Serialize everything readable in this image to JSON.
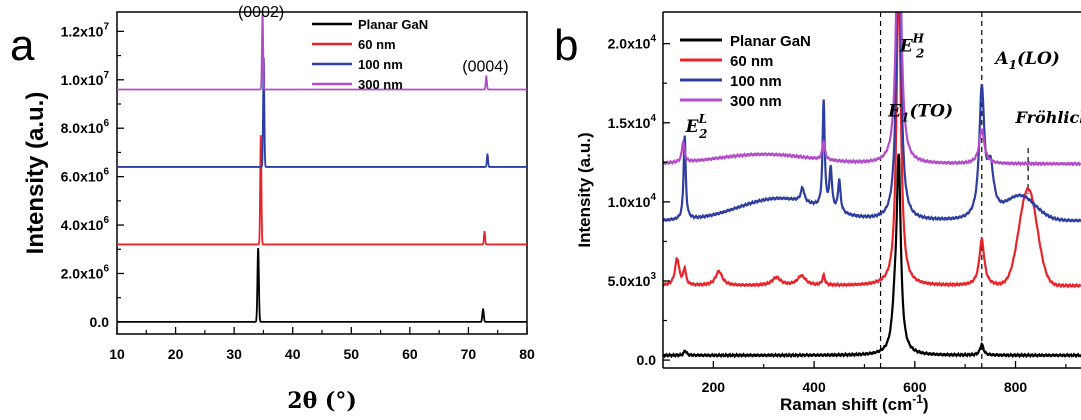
{
  "chart_data": [
    {
      "type": "line",
      "panel_label": "a",
      "xlabel": "2θ (°)",
      "ylabel": "Intensity (a.u.)",
      "xlim": [
        10,
        80
      ],
      "ylim": [
        -0.5,
        12.8
      ],
      "x_ticks": [
        10,
        20,
        30,
        40,
        50,
        60,
        70,
        80
      ],
      "y_tick_values": [
        0,
        2,
        4,
        6,
        8,
        10,
        12
      ],
      "y_tick_labels": [
        {
          "base": "0.0",
          "exp": ""
        },
        {
          "base": "2.0x10",
          "exp": "6"
        },
        {
          "base": "4.0x10",
          "exp": "6"
        },
        {
          "base": "6.0x10",
          "exp": "6"
        },
        {
          "base": "8.0x10",
          "exp": "6"
        },
        {
          "base": "1.0x10",
          "exp": "7"
        },
        {
          "base": "1.2x10",
          "exp": "7"
        }
      ],
      "y_unit_note": "millions",
      "legend_placement": "top-right",
      "annotations": [
        {
          "text": "(0002)",
          "x": 34.6,
          "y": 12.6
        },
        {
          "text": "(0004)",
          "x": 72.9,
          "y": 10.35
        }
      ],
      "series": [
        {
          "name": "Planar GaN",
          "color": "#000000",
          "offset": 0.0,
          "peaks": [
            {
              "x": 34.1,
              "height": 3.05,
              "width": 0.12
            },
            {
              "x": 72.5,
              "height": 0.52,
              "width": 0.12
            }
          ]
        },
        {
          "name": "60 nm",
          "color": "#e8232a",
          "offset": 3.2,
          "peaks": [
            {
              "x": 34.55,
              "height": 4.5,
              "width": 0.1
            },
            {
              "x": 72.75,
              "height": 0.52,
              "width": 0.1
            }
          ]
        },
        {
          "name": "100 nm",
          "color": "#2e3da0",
          "offset": 6.4,
          "peaks": [
            {
              "x": 35.05,
              "height": 4.5,
              "width": 0.1
            },
            {
              "x": 73.25,
              "height": 0.52,
              "width": 0.1
            }
          ]
        },
        {
          "name": "300 nm",
          "color": "#b24cc8",
          "offset": 9.6,
          "peaks": [
            {
              "x": 34.85,
              "height": 3.1,
              "width": 0.1
            },
            {
              "x": 73.05,
              "height": 0.55,
              "width": 0.1
            }
          ]
        }
      ]
    },
    {
      "type": "line",
      "panel_label": "b",
      "xlabel": "Raman shift (cm",
      "xlabel_sup": "-1",
      "xlabel_end": ")",
      "ylabel": "Intensity (a.u.)",
      "xlim": [
        100,
        930
      ],
      "ylim": [
        -500,
        22000
      ],
      "x_ticks": [
        200,
        400,
        600,
        800
      ],
      "y_tick_values": [
        0,
        5000,
        10000,
        15000,
        20000
      ],
      "y_tick_labels": [
        {
          "base": "0.0",
          "exp": ""
        },
        {
          "base": "5.0x10",
          "exp": "3"
        },
        {
          "base": "1.0x10",
          "exp": "4"
        },
        {
          "base": "1.5x10",
          "exp": "4"
        },
        {
          "base": "2.0x10",
          "exp": "4"
        }
      ],
      "legend_placement": "top-left",
      "dashed_lines_x": [
        532,
        733
      ],
      "dashed_short_x": 825,
      "annotations": {
        "e2l": {
          "base": "E",
          "sub": "2",
          "sup": "L",
          "x": 145,
          "y": 14400
        },
        "e1to": {
          "base": "E",
          "sub": "1",
          "arg": "TO",
          "x": 547,
          "y": 15400
        },
        "e2h": {
          "base": "E",
          "sub": "2",
          "sup": "H",
          "x": 570,
          "y": 19500
        },
        "a1lo": {
          "base": "A",
          "sub": "1",
          "arg": "LO",
          "x": 760,
          "y": 18700
        },
        "frohlich": {
          "text": "Fröhlich",
          "x": 800,
          "y": 15000
        }
      },
      "series": [
        {
          "name": "Planar GaN",
          "color": "#000000",
          "baseline": 300,
          "peaks": [
            {
              "x": 568,
              "height": 12000,
              "width": 5
            },
            {
              "x": 560,
              "height": 2000,
              "width": 6
            },
            {
              "x": 733,
              "height": 700,
              "width": 4
            },
            {
              "x": 144,
              "height": 300,
              "width": 3
            }
          ]
        },
        {
          "name": "60 nm",
          "color": "#e8232a",
          "baseline": 4700,
          "peaks": [
            {
              "x": 568,
              "height": 20000,
              "width": 5
            },
            {
              "x": 128,
              "height": 1700,
              "width": 5
            },
            {
              "x": 143,
              "height": 1000,
              "width": 3
            },
            {
              "x": 211,
              "height": 900,
              "width": 8
            },
            {
              "x": 325,
              "height": 500,
              "width": 10
            },
            {
              "x": 375,
              "height": 600,
              "width": 10
            },
            {
              "x": 419,
              "height": 600,
              "width": 3
            },
            {
              "x": 733,
              "height": 2900,
              "width": 6
            },
            {
              "x": 825,
              "height": 6100,
              "width": 18
            }
          ]
        },
        {
          "name": "100 nm",
          "color": "#2e3da0",
          "baseline": 8800,
          "peaks": [
            {
              "x": 568,
              "height": 20000,
              "width": 5
            },
            {
              "x": 143,
              "height": 5300,
              "width": 2.5
            },
            {
              "x": 330,
              "height": 1400,
              "width": 80
            },
            {
              "x": 377,
              "height": 900,
              "width": 4
            },
            {
              "x": 419,
              "height": 6800,
              "width": 2.5
            },
            {
              "x": 433,
              "height": 2600,
              "width": 3
            },
            {
              "x": 450,
              "height": 2000,
              "width": 3
            },
            {
              "x": 733,
              "height": 8000,
              "width": 6
            },
            {
              "x": 750,
              "height": 3000,
              "width": 8
            },
            {
              "x": 810,
              "height": 1500,
              "width": 30
            }
          ]
        },
        {
          "name": "300 nm",
          "color": "#b24cc8",
          "baseline": 12400,
          "peaks": [
            {
              "x": 568,
              "height": 20000,
              "width": 5
            },
            {
              "x": 140,
              "height": 1300,
              "width": 3
            },
            {
              "x": 300,
              "height": 600,
              "width": 90
            },
            {
              "x": 419,
              "height": 1200,
              "width": 3
            },
            {
              "x": 733,
              "height": 2200,
              "width": 6
            }
          ]
        }
      ]
    }
  ]
}
